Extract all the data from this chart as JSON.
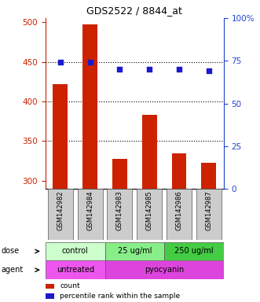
{
  "title": "GDS2522 / 8844_at",
  "samples": [
    "GSM142982",
    "GSM142984",
    "GSM142983",
    "GSM142985",
    "GSM142986",
    "GSM142987"
  ],
  "counts": [
    422,
    497,
    328,
    383,
    335,
    323
  ],
  "percentiles": [
    74,
    74,
    70,
    70,
    70,
    69
  ],
  "bar_color": "#cc2200",
  "dot_color": "#1a1acc",
  "ylim_left": [
    290,
    505
  ],
  "ylim_right": [
    0,
    100
  ],
  "left_ticks": [
    300,
    350,
    400,
    450,
    500
  ],
  "right_ticks": [
    0,
    25,
    50,
    75,
    100
  ],
  "right_tick_labels": [
    "0",
    "25",
    "50",
    "75",
    "100%"
  ],
  "grid_values": [
    350,
    400,
    450
  ],
  "dose_groups": [
    {
      "label": "control",
      "start": 0,
      "end": 2,
      "color": "#ccffcc"
    },
    {
      "label": "25 ug/ml",
      "start": 2,
      "end": 4,
      "color": "#88ee88"
    },
    {
      "label": "250 ug/ml",
      "start": 4,
      "end": 6,
      "color": "#44cc44"
    }
  ],
  "agent_groups": [
    {
      "label": "untreated",
      "start": 0,
      "end": 2,
      "color": "#ee55ee"
    },
    {
      "label": "pyocyanin",
      "start": 2,
      "end": 6,
      "color": "#dd44dd"
    }
  ],
  "dose_label": "dose",
  "agent_label": "agent",
  "legend_count": "count",
  "legend_percentile": "percentile rank within the sample",
  "axis_left_color": "#cc2200",
  "axis_right_color": "#2244cc"
}
